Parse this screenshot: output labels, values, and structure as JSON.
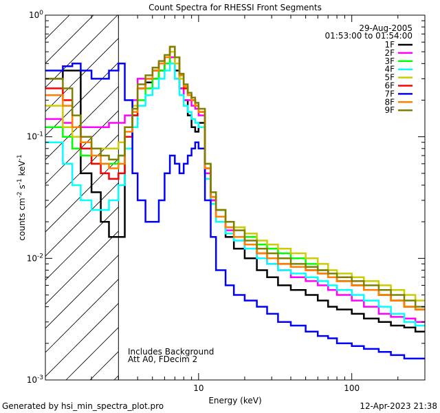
{
  "chart_data": {
    "type": "line",
    "title": "Count Spectra for RHESSI Front Segments",
    "xlabel": "Energy (keV)",
    "ylabel": "counts cm-2 s-1 keV-1",
    "ylabel_parts": {
      "base": "counts cm",
      "exp1": "-2",
      "mid": " s",
      "exp2": "-1",
      "mid2": " keV",
      "exp3": "-1"
    },
    "xscale": "log",
    "yscale": "log",
    "xlim": [
      1,
      300
    ],
    "ylim": [
      0.001,
      1
    ],
    "x_ticks": [
      {
        "value": 10,
        "label": "10"
      },
      {
        "value": 100,
        "label": "100"
      }
    ],
    "y_ticks": [
      {
        "value": 1,
        "base": "10",
        "exp": "0"
      },
      {
        "value": 0.1,
        "base": "10",
        "exp": "-1"
      },
      {
        "value": 0.01,
        "base": "10",
        "exp": "-2"
      },
      {
        "value": 0.001,
        "base": "10",
        "exp": "-3"
      }
    ],
    "hatched_region_xmax": 3,
    "date_label": "29-Aug-2005",
    "time_label": "01:53:00 to 01:54:00",
    "annotations": [
      "Includes Background",
      "Att A0, FDecim 2"
    ],
    "footer_left": "Generated by hsi_min_spectra_plot.pro",
    "footer_right": "12-Apr-2023 21:38",
    "legend_position": "top-right",
    "energy_bins": [
      1.0,
      1.3,
      1.5,
      1.7,
      2.0,
      2.3,
      2.6,
      3.0,
      3.3,
      3.7,
      4.0,
      4.5,
      5.0,
      5.5,
      6.0,
      6.5,
      7.0,
      7.5,
      8.0,
      8.5,
      9.0,
      9.5,
      10.0,
      11.0,
      12.0,
      13.0,
      15.0,
      17.0,
      20.0,
      24.0,
      28.0,
      33.0,
      40.0,
      50.0,
      60.0,
      70.0,
      80.0,
      100.0,
      120.0,
      150.0,
      180.0,
      220.0,
      260.0,
      300.0
    ],
    "series": [
      {
        "name": "1F",
        "color": "#000000",
        "values": [
          0.3,
          0.35,
          0.35,
          0.05,
          0.035,
          0.02,
          0.015,
          0.015,
          0.1,
          0.15,
          0.25,
          0.28,
          0.3,
          0.35,
          0.4,
          0.45,
          0.35,
          0.25,
          0.2,
          0.15,
          0.12,
          0.11,
          0.13,
          0.05,
          0.03,
          0.02,
          0.015,
          0.012,
          0.01,
          0.008,
          0.007,
          0.006,
          0.0055,
          0.005,
          0.0045,
          0.004,
          0.0038,
          0.0035,
          0.0032,
          0.003,
          0.0028,
          0.0027,
          0.0025
        ]
      },
      {
        "name": "2F",
        "color": "#ff00ff",
        "values": [
          0.14,
          0.13,
          0.12,
          0.12,
          0.12,
          0.12,
          0.13,
          0.13,
          0.15,
          0.2,
          0.3,
          0.3,
          0.35,
          0.4,
          0.45,
          0.45,
          0.3,
          0.25,
          0.2,
          0.2,
          0.18,
          0.17,
          0.15,
          0.05,
          0.03,
          0.02,
          0.017,
          0.015,
          0.012,
          0.01,
          0.009,
          0.008,
          0.007,
          0.0065,
          0.006,
          0.0055,
          0.005,
          0.0045,
          0.004,
          0.0035,
          0.0033,
          0.0032,
          0.003
        ]
      },
      {
        "name": "3F",
        "color": "#00ff00",
        "values": [
          0.12,
          0.1,
          0.08,
          0.07,
          0.06,
          0.06,
          0.06,
          0.07,
          0.1,
          0.15,
          0.2,
          0.25,
          0.3,
          0.35,
          0.4,
          0.5,
          0.4,
          0.3,
          0.25,
          0.22,
          0.2,
          0.18,
          0.16,
          0.06,
          0.035,
          0.025,
          0.02,
          0.018,
          0.015,
          0.013,
          0.012,
          0.011,
          0.01,
          0.009,
          0.008,
          0.007,
          0.0065,
          0.006,
          0.0055,
          0.005,
          0.0045,
          0.004,
          0.0038
        ]
      },
      {
        "name": "4F",
        "color": "#00ffff",
        "values": [
          0.09,
          0.06,
          0.04,
          0.03,
          0.025,
          0.025,
          0.03,
          0.04,
          0.08,
          0.12,
          0.18,
          0.22,
          0.25,
          0.3,
          0.35,
          0.4,
          0.3,
          0.22,
          0.18,
          0.16,
          0.14,
          0.13,
          0.12,
          0.045,
          0.028,
          0.02,
          0.016,
          0.014,
          0.012,
          0.01,
          0.009,
          0.008,
          0.0075,
          0.007,
          0.0065,
          0.006,
          0.0055,
          0.005,
          0.0045,
          0.004,
          0.0035,
          0.003,
          0.0028
        ]
      },
      {
        "name": "5F",
        "color": "#cccc00",
        "values": [
          0.18,
          0.12,
          0.1,
          0.09,
          0.08,
          0.08,
          0.08,
          0.09,
          0.12,
          0.18,
          0.25,
          0.3,
          0.35,
          0.4,
          0.45,
          0.5,
          0.4,
          0.3,
          0.25,
          0.22,
          0.2,
          0.18,
          0.16,
          0.06,
          0.035,
          0.025,
          0.02,
          0.018,
          0.016,
          0.014,
          0.013,
          0.012,
          0.011,
          0.01,
          0.009,
          0.008,
          0.0075,
          0.007,
          0.0065,
          0.006,
          0.0055,
          0.005,
          0.0045
        ]
      },
      {
        "name": "6F",
        "color": "#ff0000",
        "values": [
          0.25,
          0.2,
          0.12,
          0.08,
          0.06,
          0.05,
          0.045,
          0.05,
          0.1,
          0.15,
          0.25,
          0.3,
          0.35,
          0.4,
          0.45,
          0.55,
          0.45,
          0.32,
          0.25,
          0.22,
          0.2,
          0.18,
          0.16,
          0.055,
          0.032,
          0.022,
          0.018,
          0.015,
          0.013,
          0.011,
          0.01,
          0.009,
          0.0085,
          0.008,
          0.0075,
          0.007,
          0.0065,
          0.006,
          0.0055,
          0.005,
          0.0045,
          0.004,
          0.0038
        ]
      },
      {
        "name": "7F",
        "color": "#0000ff",
        "values": [
          0.35,
          0.38,
          0.4,
          0.35,
          0.3,
          0.3,
          0.35,
          0.4,
          0.2,
          0.05,
          0.03,
          0.02,
          0.02,
          0.03,
          0.05,
          0.07,
          0.06,
          0.05,
          0.06,
          0.07,
          0.08,
          0.09,
          0.08,
          0.03,
          0.015,
          0.008,
          0.006,
          0.005,
          0.0045,
          0.004,
          0.0035,
          0.003,
          0.0028,
          0.0025,
          0.0023,
          0.0022,
          0.002,
          0.0019,
          0.0018,
          0.0017,
          0.0016,
          0.0015,
          0.0015
        ]
      },
      {
        "name": "8F",
        "color": "#ff8000",
        "values": [
          0.22,
          0.18,
          0.12,
          0.09,
          0.07,
          0.06,
          0.055,
          0.06,
          0.11,
          0.16,
          0.25,
          0.3,
          0.35,
          0.4,
          0.45,
          0.55,
          0.45,
          0.32,
          0.26,
          0.22,
          0.2,
          0.18,
          0.16,
          0.055,
          0.032,
          0.022,
          0.018,
          0.015,
          0.013,
          0.011,
          0.01,
          0.009,
          0.0085,
          0.008,
          0.0075,
          0.007,
          0.0065,
          0.006,
          0.0055,
          0.005,
          0.0045,
          0.004,
          0.0038
        ]
      },
      {
        "name": "9F",
        "color": "#808000",
        "values": [
          0.3,
          0.25,
          0.15,
          0.1,
          0.08,
          0.07,
          0.065,
          0.07,
          0.12,
          0.17,
          0.27,
          0.32,
          0.37,
          0.42,
          0.47,
          0.55,
          0.45,
          0.33,
          0.27,
          0.23,
          0.21,
          0.19,
          0.17,
          0.06,
          0.035,
          0.025,
          0.02,
          0.017,
          0.014,
          0.012,
          0.011,
          0.01,
          0.009,
          0.0085,
          0.008,
          0.0075,
          0.007,
          0.0065,
          0.006,
          0.0055,
          0.005,
          0.0045,
          0.004
        ]
      }
    ]
  }
}
